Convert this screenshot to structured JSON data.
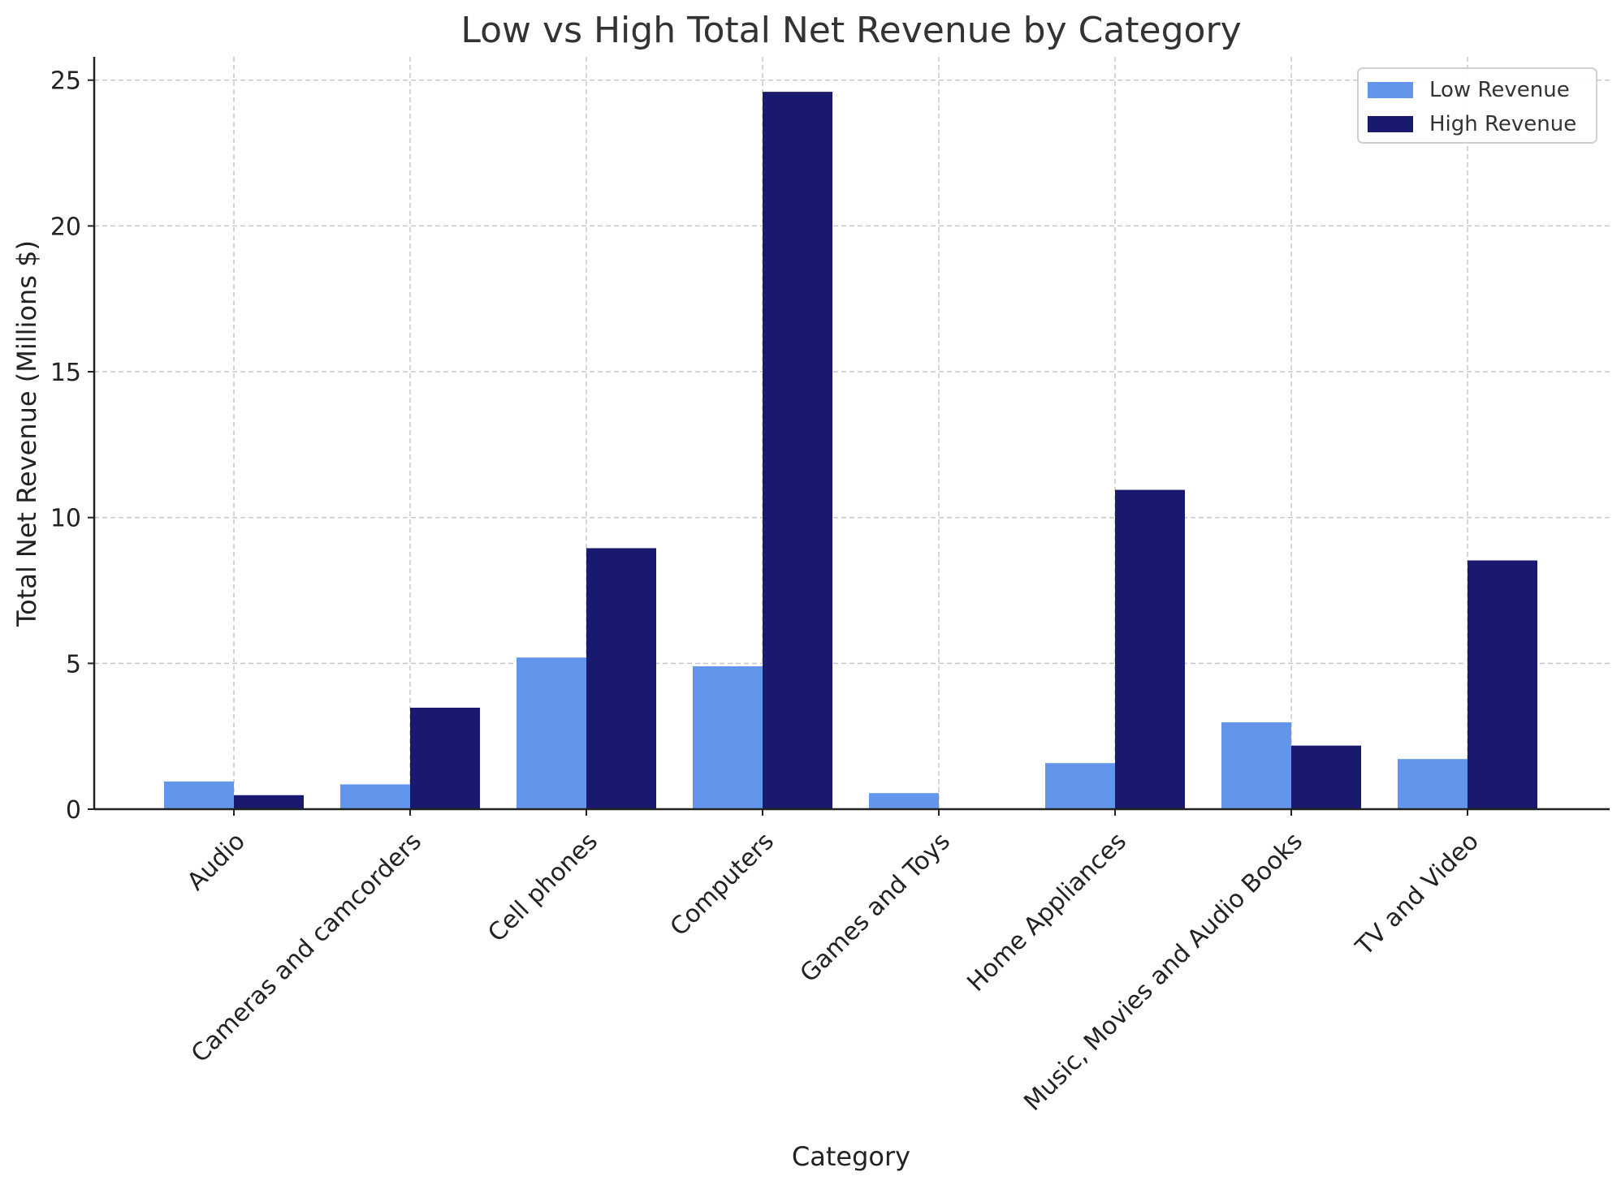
{
  "chart_data": {
    "type": "bar",
    "title": "Low vs High Total Net Revenue by Category",
    "xlabel": "Category",
    "ylabel": "Total Net Revenue (Millions $)",
    "categories": [
      "Audio",
      "Cameras and camcorders",
      "Cell phones",
      "Computers",
      "Games and Toys",
      "Home Appliances",
      "Music, Movies and Audio Books",
      "TV and Video"
    ],
    "series": [
      {
        "name": "Low Revenue",
        "color": "#6495ED",
        "values": [
          0.95,
          0.85,
          5.2,
          4.9,
          0.55,
          1.58,
          2.98,
          1.72
        ]
      },
      {
        "name": "High Revenue",
        "color": "#191970",
        "values": [
          0.48,
          3.48,
          8.95,
          24.6,
          0.0,
          10.95,
          2.18,
          8.53
        ]
      }
    ],
    "ylim": [
      0,
      25.8
    ],
    "yticks": [
      0,
      5,
      10,
      15,
      20,
      25
    ],
    "grid": true,
    "legend_position": "top-right"
  }
}
